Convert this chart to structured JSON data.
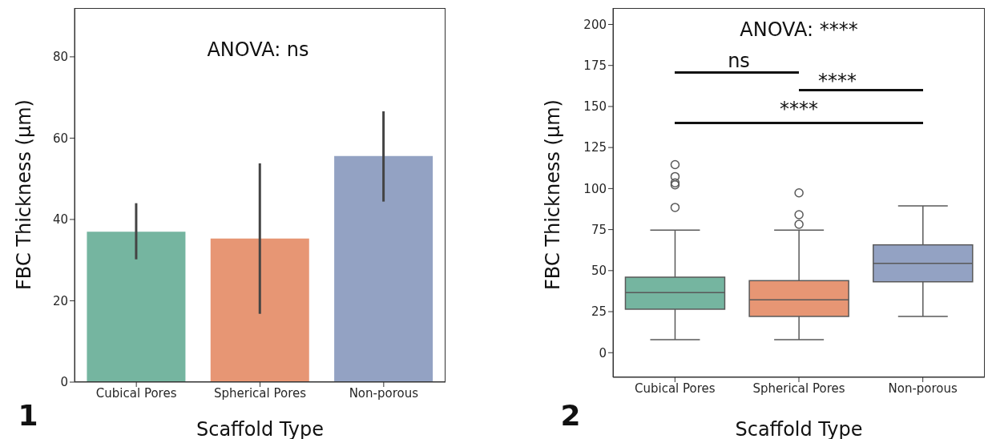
{
  "chart_data": [
    {
      "type": "bar",
      "categories": [
        "Cubical Pores",
        "Spherical Pores",
        "Non-porous"
      ],
      "values": [
        37,
        35.3,
        55.6
      ],
      "colors": [
        "#75b5a0",
        "#e79674",
        "#93a2c3"
      ],
      "errors": [
        [
          30.2,
          44
        ],
        [
          16.8,
          53.8
        ],
        [
          44.4,
          66.6
        ]
      ],
      "xlabel": "Scaffold Type",
      "ylabel": "FBC Thickness (µm)",
      "ylim": [
        0,
        92
      ],
      "yticks": [
        0,
        20,
        40,
        60,
        80
      ],
      "annotations": [
        "ANOVA: ns",
        "1"
      ]
    },
    {
      "type": "box",
      "categories": [
        "Cubical Pores",
        "Spherical Pores",
        "Non-porous"
      ],
      "colors": [
        "#75b5a0",
        "#e79674",
        "#93a2c3"
      ],
      "boxes": [
        {
          "low": 8,
          "q1": 26.5,
          "median": 36.6,
          "q3": 46,
          "high": 74.7,
          "outliers": [
            114.6,
            107.3,
            103.5,
            102.3,
            88.5
          ]
        },
        {
          "low": 8,
          "q1": 22.1,
          "median": 32.2,
          "q3": 43.9,
          "high": 74.7,
          "outliers": [
            97.4,
            84.1,
            78.2
          ]
        },
        {
          "low": 22.1,
          "q1": 43.2,
          "median": 54.4,
          "q3": 65.7,
          "high": 89.4
        }
      ],
      "xlabel": "Scaffold Type",
      "ylabel": "FBC Thickness (µm)",
      "ylim": [
        -15,
        210
      ],
      "yticks": [
        0,
        25,
        50,
        75,
        100,
        125,
        150,
        175,
        200
      ],
      "annotations": [
        "ANOVA: ****",
        "ns",
        "****",
        "****",
        "2"
      ]
    }
  ]
}
